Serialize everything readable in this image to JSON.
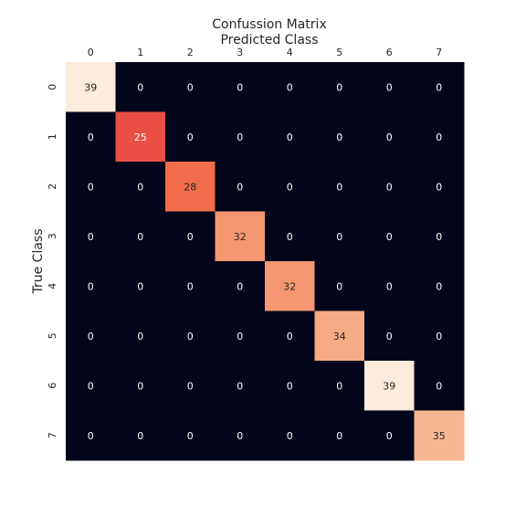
{
  "chart_data": {
    "type": "heatmap",
    "title": "Confussion Matrix",
    "xlabel": "Predicted Class",
    "ylabel": "True Class",
    "x_categories": [
      "0",
      "1",
      "2",
      "3",
      "4",
      "5",
      "6",
      "7"
    ],
    "y_categories": [
      "0",
      "1",
      "2",
      "3",
      "4",
      "5",
      "6",
      "7"
    ],
    "x_ticks_position": "top",
    "colorbar": false,
    "grid": false,
    "colormap": "rocket",
    "value_range": [
      0,
      39
    ],
    "values": [
      [
        39,
        0,
        0,
        0,
        0,
        0,
        0,
        0
      ],
      [
        0,
        25,
        0,
        0,
        0,
        0,
        0,
        0
      ],
      [
        0,
        0,
        28,
        0,
        0,
        0,
        0,
        0
      ],
      [
        0,
        0,
        0,
        32,
        0,
        0,
        0,
        0
      ],
      [
        0,
        0,
        0,
        0,
        32,
        0,
        0,
        0
      ],
      [
        0,
        0,
        0,
        0,
        0,
        34,
        0,
        0
      ],
      [
        0,
        0,
        0,
        0,
        0,
        0,
        39,
        0
      ],
      [
        0,
        0,
        0,
        0,
        0,
        0,
        0,
        35
      ]
    ],
    "colors": {
      "min": "#03051a",
      "max": "#faebdd"
    }
  }
}
